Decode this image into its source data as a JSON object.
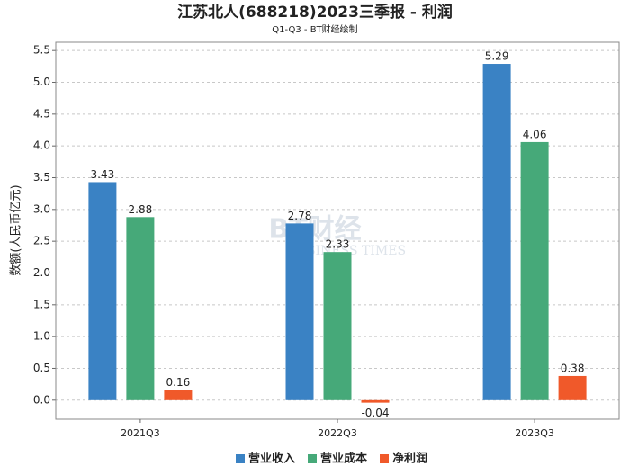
{
  "chart_data": {
    "type": "bar",
    "title": "江苏北人(688218)2023三季报 - 利润",
    "subtitle": "Q1-Q3 - BT财经绘制",
    "y_label": "数额(人民币亿元)",
    "watermark": "BT财经",
    "watermark_sub": "BUSINESS TIMES",
    "categories": [
      "2021Q3",
      "2022Q3",
      "2023Q3"
    ],
    "series": [
      {
        "name": "营业收入",
        "color": "#3a82c4",
        "values": [
          3.43,
          2.78,
          5.29
        ]
      },
      {
        "name": "营业成本",
        "color": "#46a979",
        "values": [
          2.88,
          2.33,
          4.06
        ]
      },
      {
        "name": "净利润",
        "color": "#f0592a",
        "values": [
          0.16,
          -0.04,
          0.38
        ]
      }
    ],
    "ylim": [
      -0.3,
      5.63
    ],
    "yticks": [
      {
        "value": 0,
        "label": "0.0"
      },
      0.5,
      {
        "value": 1,
        "label": "1.0"
      },
      1.5,
      {
        "value": 2,
        "label": "2.0"
      },
      2.5,
      {
        "value": 3,
        "label": "3.0"
      },
      3.5,
      {
        "value": 4,
        "label": "4.0"
      },
      4.5,
      {
        "value": 5,
        "label": "5.0"
      },
      5.5
    ],
    "grid": true,
    "legend": "bottom"
  }
}
